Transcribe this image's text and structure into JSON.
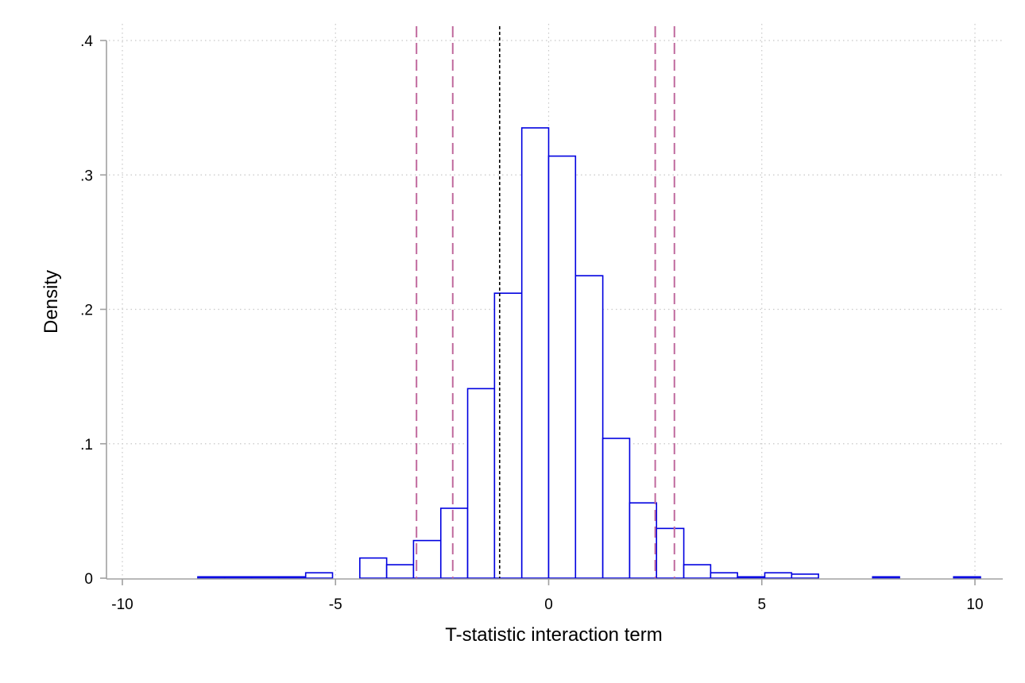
{
  "chart_data": {
    "type": "bar",
    "xlabel": "T-statistic interaction term",
    "ylabel": "Density",
    "xlim": [
      -10,
      10
    ],
    "ylim": [
      0,
      0.4
    ],
    "x_ticks": [
      -10,
      -5,
      0,
      5,
      10
    ],
    "x_tick_labels": [
      "-10",
      "-5",
      "0",
      "5",
      "10"
    ],
    "y_ticks": [
      0,
      0.1,
      0.2,
      0.3,
      0.4
    ],
    "y_tick_labels": [
      "0",
      ".1",
      ".2",
      ".3",
      ".4"
    ],
    "grid": true,
    "bin_width": 0.633,
    "bins": [
      {
        "x0": -8.23,
        "x1": -7.6,
        "density": 0.001
      },
      {
        "x0": -7.6,
        "x1": -6.97,
        "density": 0.001
      },
      {
        "x0": -6.97,
        "x1": -6.33,
        "density": 0.001
      },
      {
        "x0": -6.33,
        "x1": -5.7,
        "density": 0.001
      },
      {
        "x0": -5.7,
        "x1": -5.07,
        "density": 0.004
      },
      {
        "x0": -4.43,
        "x1": -3.8,
        "density": 0.015
      },
      {
        "x0": -3.8,
        "x1": -3.17,
        "density": 0.01
      },
      {
        "x0": -3.17,
        "x1": -2.53,
        "density": 0.028
      },
      {
        "x0": -2.53,
        "x1": -1.9,
        "density": 0.052
      },
      {
        "x0": -1.9,
        "x1": -1.27,
        "density": 0.141
      },
      {
        "x0": -1.27,
        "x1": -0.63,
        "density": 0.212
      },
      {
        "x0": -0.63,
        "x1": 0.0,
        "density": 0.335
      },
      {
        "x0": 0.0,
        "x1": 0.63,
        "density": 0.314
      },
      {
        "x0": 0.63,
        "x1": 1.27,
        "density": 0.225
      },
      {
        "x0": 1.27,
        "x1": 1.9,
        "density": 0.104
      },
      {
        "x0": 1.9,
        "x1": 2.53,
        "density": 0.056
      },
      {
        "x0": 2.53,
        "x1": 3.17,
        "density": 0.037
      },
      {
        "x0": 3.17,
        "x1": 3.8,
        "density": 0.01
      },
      {
        "x0": 3.8,
        "x1": 4.43,
        "density": 0.004
      },
      {
        "x0": 4.43,
        "x1": 5.07,
        "density": 0.001
      },
      {
        "x0": 5.07,
        "x1": 5.7,
        "density": 0.004
      },
      {
        "x0": 5.7,
        "x1": 6.33,
        "density": 0.003
      },
      {
        "x0": 7.6,
        "x1": 8.23,
        "density": 0.001
      },
      {
        "x0": 9.5,
        "x1": 10.13,
        "density": 0.001
      }
    ],
    "reference_lines": [
      {
        "x": -1.15,
        "style": "dashed",
        "color": "#000000"
      },
      {
        "x": -3.1,
        "style": "long-dashed",
        "color": "#c06a9e"
      },
      {
        "x": -2.25,
        "style": "long-dashed",
        "color": "#c06a9e"
      },
      {
        "x": 2.5,
        "style": "long-dashed",
        "color": "#c06a9e"
      },
      {
        "x": 2.95,
        "style": "long-dashed",
        "color": "#c06a9e"
      }
    ],
    "colors": {
      "bar_outline": "#0000e0",
      "bar_fill": "#ffffff",
      "axis": "#a0a0a0",
      "grid": "#c8c8c8"
    }
  }
}
